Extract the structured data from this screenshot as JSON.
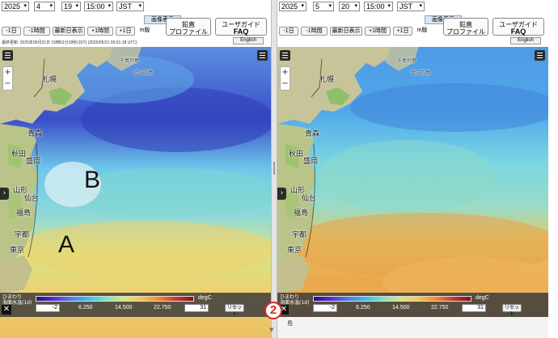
{
  "left": {
    "year": "2025",
    "month": "4",
    "day": "19",
    "time": "15:00",
    "timezone": "JST",
    "view_image_label": "画像表示",
    "buttons": {
      "minus_day": "-1日",
      "minus_hour": "-1時間",
      "latest": "最新日表示",
      "plus_hour": "+1時間",
      "plus_day": "+1日",
      "partial": "m版"
    },
    "profile": {
      "line1": "鉛直",
      "line2": "プロファイル"
    },
    "guide": {
      "line1": "ユーザガイド",
      "line2": "FAQ"
    },
    "english": "English",
    "updated": "最終更新: 2025年05月21日 15時51分18秒(JST) (2025/05/21 06:51:18 UTC)",
    "cities": [
      "札幌",
      "青森",
      "秋田",
      "盛岡",
      "山形",
      "仙台",
      "福島",
      "宇都",
      "東京"
    ],
    "faint_labels": [
      "千島列島",
      "北方四島"
    ],
    "annotations": {
      "a": "A",
      "b": "B"
    },
    "legend": {
      "source": "ひまわり",
      "product": "海面水温(1d)",
      "unit": "degC",
      "min": "-2",
      "max": "31",
      "ticks": [
        "6.250",
        "14.500",
        "22.750"
      ],
      "reset": "リセット"
    }
  },
  "right": {
    "year": "2025",
    "month": "5",
    "day": "20",
    "time": "15:00",
    "timezone": "JST",
    "view_image_label": "画像表示",
    "buttons": {
      "minus_day": "-1日",
      "minus_hour": "-1時間",
      "latest": "最新日表示",
      "plus_hour": "+1時間",
      "plus_day": "+1日",
      "partial": "m版"
    },
    "profile": {
      "line1": "鉛直",
      "line2": "プロファイル"
    },
    "guide": {
      "line1": "ユーザガイド",
      "line2": "FAQ"
    },
    "english": "English",
    "cities": [
      "札幌",
      "青森",
      "秋田",
      "盛岡",
      "山形",
      "仙台",
      "福島",
      "宇都",
      "東京"
    ],
    "faint_labels": [
      "千島列島",
      "北方四島"
    ],
    "legend": {
      "source": "ひまわり",
      "product": "海面水温(1d)",
      "unit": "degC",
      "min": "-2",
      "max": "31",
      "ticks": [
        "6.250",
        "14.500",
        "22.750"
      ],
      "reset": "リセット"
    },
    "bottom_label": "島"
  },
  "marker": "2",
  "icons": [
    "menu-icon",
    "zoom-in-icon",
    "zoom-out-icon",
    "chevron-right-icon",
    "close-icon",
    "chevron-down-icon"
  ],
  "colors": {
    "cold_sea": "#3a4fc8",
    "mid_sea": "#62c0e8",
    "warm_sea": "#e8b24c",
    "land": "#c8c49a",
    "legend_bg": "#3c3c3c",
    "marker": "#d62a1f"
  }
}
